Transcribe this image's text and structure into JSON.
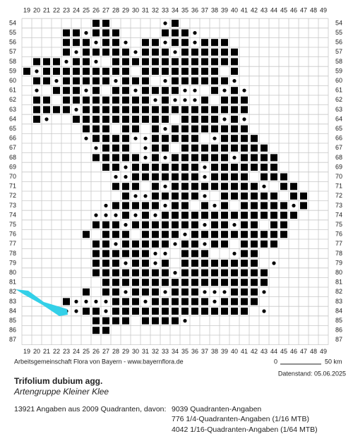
{
  "map": {
    "columns": [
      19,
      20,
      21,
      22,
      23,
      24,
      25,
      26,
      27,
      28,
      29,
      30,
      31,
      32,
      33,
      34,
      35,
      36,
      37,
      38,
      39,
      40,
      41,
      42,
      43,
      44,
      45,
      46,
      47,
      48,
      49
    ],
    "rows": [
      54,
      55,
      56,
      57,
      58,
      59,
      60,
      61,
      62,
      63,
      64,
      65,
      66,
      67,
      68,
      69,
      70,
      71,
      72,
      73,
      74,
      75,
      76,
      77,
      78,
      79,
      80,
      81,
      82,
      83,
      84,
      85,
      86,
      87
    ],
    "credit": "Arbeitsgemeinschaft Flora von Bayern - www.bayernflora.de",
    "scale_start": "0",
    "scale_end": "50 km",
    "data_date": "Datenstand: 05.06.2025"
  },
  "species": {
    "name": "Trifolium dubium agg.",
    "common_name": "Artengruppe Kleiner Klee"
  },
  "stats": {
    "summary": "13921 Angaben aus 2009 Quadranten, davon:",
    "lines": [
      "9039 Quadranten-Angaben",
      "776 1/4-Quadranten-Angaben (1/16 MTB)",
      "4042 1/16-Quadranten-Angaben (1/64 MTB)"
    ]
  }
}
